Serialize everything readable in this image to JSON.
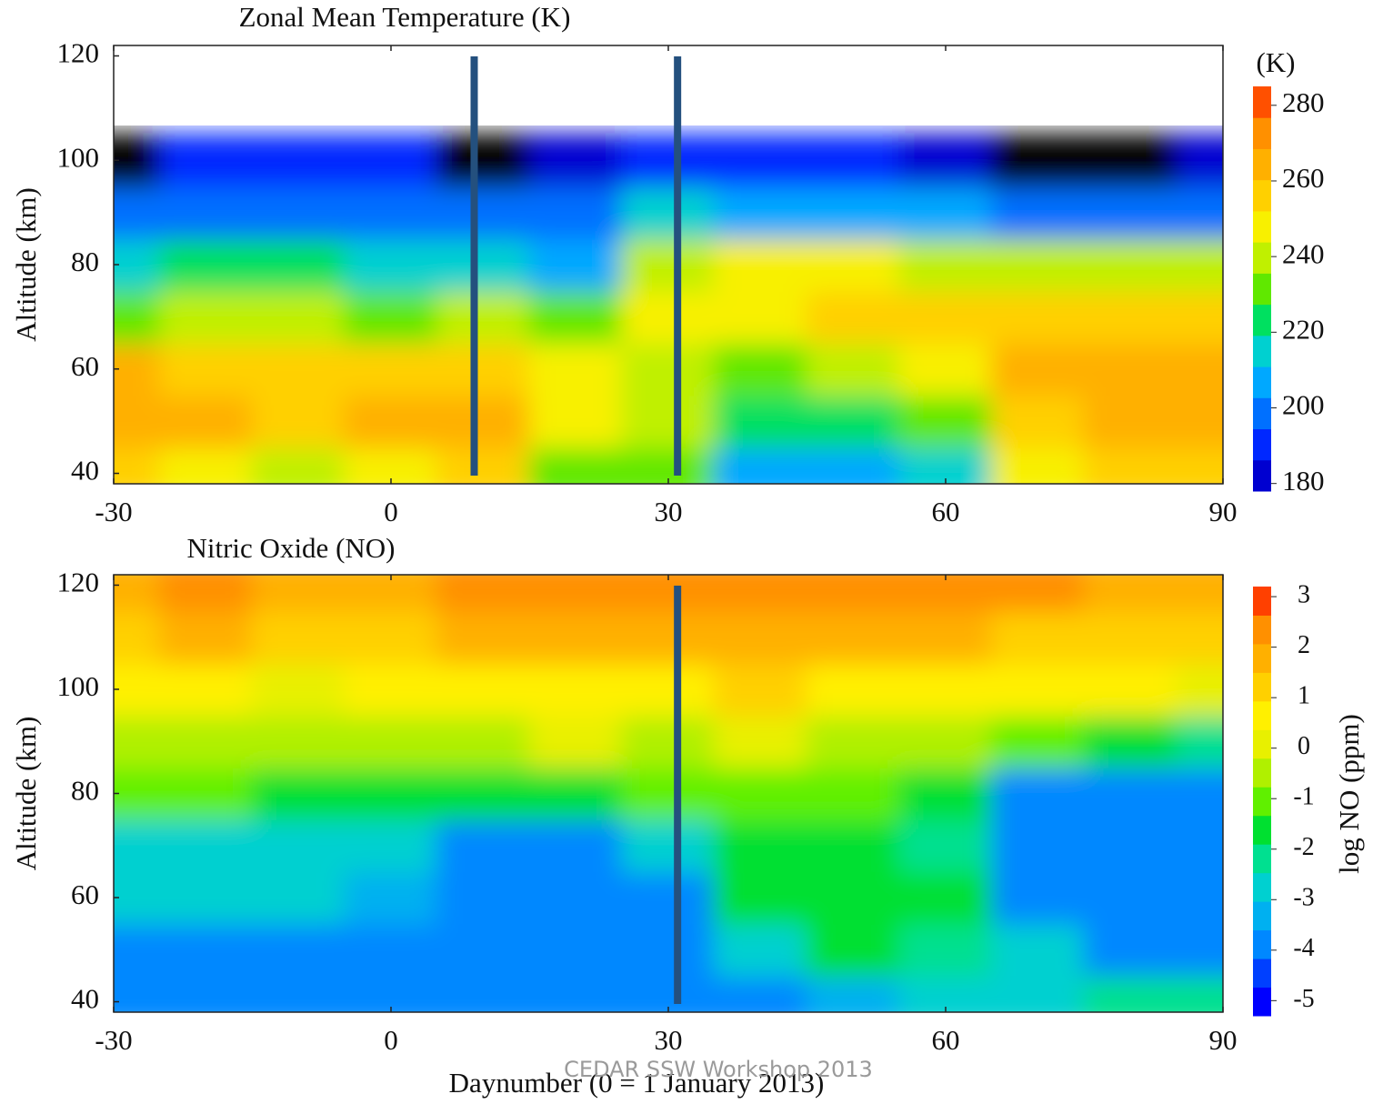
{
  "chart_data": [
    {
      "type": "heatmap",
      "title": "Zonal Mean Temperature (K)",
      "ylabel": "Altitude (km)",
      "x": [
        -30,
        -20,
        -10,
        0,
        10,
        20,
        30,
        40,
        50,
        60,
        70,
        80,
        90
      ],
      "y": [
        40,
        50,
        60,
        70,
        80,
        90,
        100,
        110,
        120
      ],
      "z": [
        [
          255,
          250,
          240,
          245,
          255,
          235,
          230,
          210,
          205,
          215,
          245,
          255,
          255
        ],
        [
          265,
          262,
          258,
          262,
          262,
          245,
          238,
          225,
          222,
          235,
          258,
          268,
          265
        ],
        [
          262,
          260,
          258,
          258,
          258,
          250,
          240,
          235,
          240,
          250,
          262,
          265,
          262
        ],
        [
          235,
          240,
          240,
          235,
          240,
          235,
          245,
          250,
          255,
          258,
          258,
          258,
          255
        ],
        [
          215,
          220,
          222,
          218,
          215,
          205,
          240,
          245,
          245,
          240,
          240,
          240,
          238
        ],
        [
          195,
          200,
          200,
          198,
          195,
          200,
          215,
          210,
          210,
          205,
          200,
          200,
          198
        ],
        [
          176,
          188,
          190,
          190,
          172,
          185,
          190,
          192,
          192,
          180,
          172,
          175,
          178
        ],
        [
          null,
          null,
          null,
          null,
          null,
          null,
          null,
          null,
          null,
          null,
          null,
          null,
          null
        ],
        [
          null,
          null,
          null,
          null,
          null,
          null,
          null,
          null,
          null,
          null,
          null,
          null,
          null
        ]
      ],
      "xlim": [
        -30,
        90
      ],
      "ylim": [
        38,
        122
      ],
      "xticks": [
        -30,
        0,
        30,
        60,
        90
      ],
      "yticks": [
        40,
        60,
        80,
        100,
        120
      ],
      "zlim": [
        178,
        285
      ],
      "colors": [
        "#0000d0",
        "#0028ff",
        "#0070ff",
        "#00a8ff",
        "#00d0d0",
        "#00e060",
        "#60e800",
        "#c0f000",
        "#f8f000",
        "#ffd000",
        "#ffb000",
        "#ff9000",
        "#ff5000"
      ],
      "under_color": "#000000",
      "colorbar_label": "(K)",
      "colorbar_ticks": [
        180,
        200,
        220,
        240,
        260,
        280
      ],
      "vlines": [
        9,
        31
      ],
      "vline_color": "#24507e"
    },
    {
      "type": "heatmap",
      "title": "Nitric Oxide (NO)",
      "ylabel": "Altitude (km)",
      "xlabel": "Daynumber (0 = 1 January 2013)",
      "x": [
        -30,
        -20,
        -10,
        0,
        10,
        20,
        30,
        40,
        50,
        60,
        70,
        80,
        90
      ],
      "y": [
        40,
        50,
        60,
        70,
        80,
        90,
        100,
        110,
        120
      ],
      "z": [
        [
          -4,
          -4,
          -4,
          -4,
          -4,
          -4,
          -4,
          -4,
          -3.5,
          -3,
          -2.5,
          -2,
          -2
        ],
        [
          -4,
          -4,
          -4,
          -4,
          -4,
          -4,
          -4,
          -2.5,
          -1.5,
          -2,
          -3,
          -4,
          -4
        ],
        [
          -3,
          -3,
          -3,
          -3.5,
          -4,
          -4,
          -4,
          -1.5,
          -1.5,
          -1.5,
          -4,
          -4,
          -4
        ],
        [
          -2.5,
          -3,
          -2.5,
          -2.5,
          -4,
          -4,
          -3,
          -1.5,
          -1.5,
          -2,
          -4,
          -4,
          -4
        ],
        [
          -1.2,
          -1.3,
          -1.5,
          -1.5,
          -1.5,
          -1.8,
          -1,
          -1.2,
          -1.2,
          -1.5,
          -4,
          -4,
          -4
        ],
        [
          -0.3,
          -0.3,
          -0.3,
          -0.5,
          -0.3,
          -0.2,
          -0.5,
          0,
          -0.3,
          -0.3,
          -1,
          -1.5,
          -2
        ],
        [
          0.5,
          0.5,
          0.3,
          0.5,
          0.5,
          0.6,
          0.8,
          1,
          0.8,
          0.7,
          0.5,
          0.5,
          0.2
        ],
        [
          1.5,
          1.6,
          1.3,
          1.5,
          1.6,
          1.6,
          1.7,
          1.8,
          1.6,
          1.6,
          1.5,
          1.5,
          1.3
        ],
        [
          2,
          2.2,
          2,
          2,
          2.1,
          2.2,
          2.3,
          2.3,
          2.2,
          2.2,
          2.1,
          2,
          2
        ]
      ],
      "xlim": [
        -30,
        90
      ],
      "ylim": [
        38,
        122
      ],
      "xticks": [
        -30,
        0,
        30,
        60,
        90
      ],
      "yticks": [
        40,
        60,
        80,
        100,
        120
      ],
      "zlim": [
        -5.3,
        3.2
      ],
      "colors": [
        "#0000ff",
        "#0040ff",
        "#0088ff",
        "#00b0f0",
        "#00d0d0",
        "#00e090",
        "#00e030",
        "#60f000",
        "#b0f000",
        "#e8f000",
        "#fff000",
        "#ffd000",
        "#ffb000",
        "#ff9000",
        "#ff4000"
      ],
      "colorbar_label": "log NO (ppm)",
      "colorbar_ticks": [
        -5,
        -4,
        -3,
        -2,
        -1,
        0,
        1,
        2,
        3
      ],
      "vlines": [
        31
      ],
      "vline_color": "#24507e"
    }
  ],
  "footer": "CEDAR SSW Workshop 2013"
}
